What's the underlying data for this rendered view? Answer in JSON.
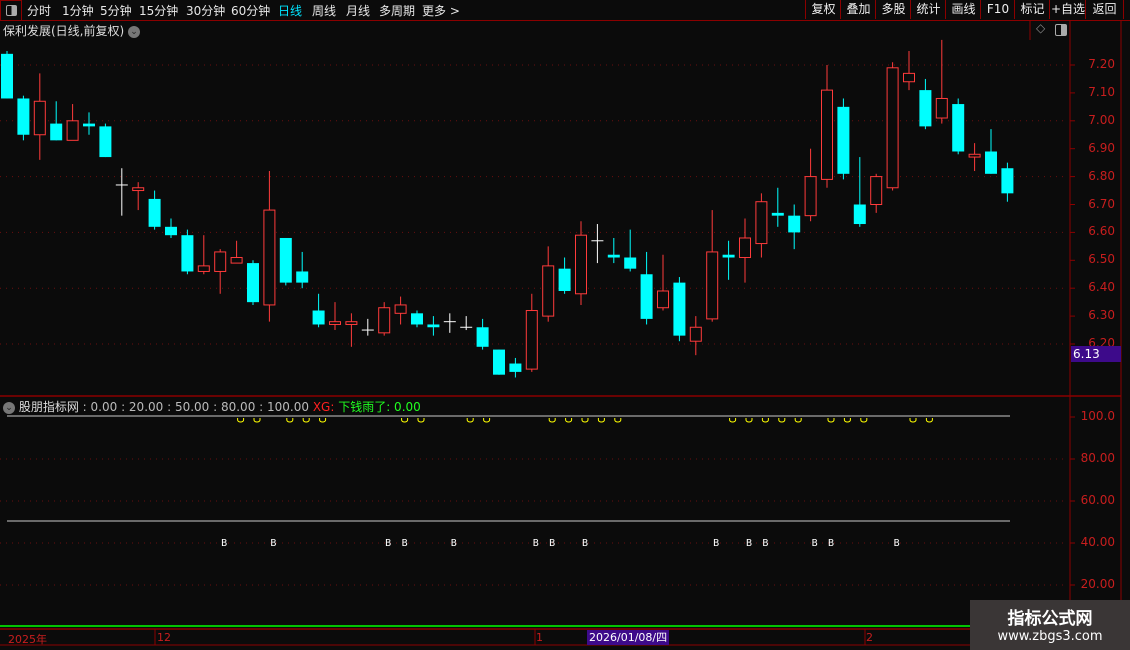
{
  "toolbar": {
    "periods": [
      "分时",
      "1分钟",
      "5分钟",
      "15分钟",
      "30分钟",
      "60分钟",
      "日线",
      "周线",
      "月线",
      "多周期",
      "更多 >"
    ],
    "active_period": "日线",
    "actions": [
      "复权",
      "叠加",
      "多股",
      "统计",
      "画线",
      "F10",
      "标记",
      "+自选",
      "返回"
    ]
  },
  "main": {
    "title": "保利发展(日线,前复权)",
    "price_ticks": [
      "7.20",
      "7.10",
      "7.00",
      "6.90",
      "6.80",
      "6.70",
      "6.60",
      "6.50",
      "6.40",
      "6.30",
      "6.20"
    ],
    "current_price_label": "6.13",
    "colors": {
      "up": "#ff3b3b",
      "down": "#00ffff",
      "flat": "#ffffff",
      "grid": "#6a0f0f",
      "axis": "#8b0000"
    }
  },
  "indicator": {
    "name": "股朋指标网",
    "params": ": 0.00 : 20.00 : 50.00 : 80.00 : 100.00",
    "xg_label": "XG:",
    "signal_text": "下钱雨了: 0.00",
    "ticks": [
      "100.0",
      "80.00",
      "60.00",
      "40.00",
      "20.00"
    ],
    "marker_label": "B",
    "colors": {
      "circle": "#ffff00",
      "line": "#c8c8c8",
      "zero": "#00ff00",
      "xg": "#ff2020",
      "signal": "#20ff20"
    }
  },
  "xaxis": {
    "labels": [
      {
        "text": "2025年"
      },
      {
        "text": "12"
      },
      {
        "text": "1"
      },
      {
        "text": "2"
      }
    ],
    "cursor_date": "2026/01/08/四"
  },
  "watermark": {
    "line1": "指标公式网",
    "line2": "www.zbgs3.com"
  },
  "chart_data": {
    "type": "candlestick",
    "ohlc_order": [
      "open",
      "high",
      "low",
      "close"
    ],
    "candles": [
      [
        7.24,
        7.25,
        7.08,
        7.08
      ],
      [
        7.08,
        7.09,
        6.93,
        6.95
      ],
      [
        6.95,
        7.17,
        6.86,
        7.07
      ],
      [
        6.99,
        7.07,
        6.93,
        6.93
      ],
      [
        6.93,
        7.06,
        6.93,
        7.0
      ],
      [
        6.99,
        7.03,
        6.95,
        6.98
      ],
      [
        6.98,
        6.99,
        6.87,
        6.87
      ],
      [
        6.77,
        6.83,
        6.66,
        6.77
      ],
      [
        6.75,
        6.78,
        6.68,
        6.76
      ],
      [
        6.72,
        6.75,
        6.61,
        6.62
      ],
      [
        6.62,
        6.65,
        6.58,
        6.59
      ],
      [
        6.59,
        6.61,
        6.45,
        6.46
      ],
      [
        6.46,
        6.59,
        6.45,
        6.48
      ],
      [
        6.46,
        6.54,
        6.38,
        6.53
      ],
      [
        6.49,
        6.57,
        6.49,
        6.51
      ],
      [
        6.49,
        6.5,
        6.34,
        6.35
      ],
      [
        6.34,
        6.82,
        6.28,
        6.68
      ],
      [
        6.58,
        6.58,
        6.41,
        6.42
      ],
      [
        6.46,
        6.53,
        6.4,
        6.42
      ],
      [
        6.32,
        6.38,
        6.26,
        6.27
      ],
      [
        6.27,
        6.35,
        6.25,
        6.28
      ],
      [
        6.27,
        6.31,
        6.19,
        6.28
      ],
      [
        6.25,
        6.29,
        6.23,
        6.25
      ],
      [
        6.24,
        6.35,
        6.23,
        6.33
      ],
      [
        6.31,
        6.37,
        6.27,
        6.34
      ],
      [
        6.31,
        6.32,
        6.26,
        6.27
      ],
      [
        6.27,
        6.3,
        6.23,
        6.26
      ],
      [
        6.28,
        6.31,
        6.24,
        6.28
      ],
      [
        6.26,
        6.3,
        6.25,
        6.26
      ],
      [
        6.26,
        6.29,
        6.18,
        6.19
      ],
      [
        6.18,
        6.18,
        6.09,
        6.09
      ],
      [
        6.13,
        6.15,
        6.08,
        6.1
      ],
      [
        6.11,
        6.38,
        6.1,
        6.32
      ],
      [
        6.3,
        6.55,
        6.28,
        6.48
      ],
      [
        6.47,
        6.51,
        6.38,
        6.39
      ],
      [
        6.38,
        6.64,
        6.34,
        6.59
      ],
      [
        6.57,
        6.63,
        6.49,
        6.57
      ],
      [
        6.52,
        6.58,
        6.49,
        6.51
      ],
      [
        6.51,
        6.61,
        6.46,
        6.47
      ],
      [
        6.45,
        6.53,
        6.27,
        6.29
      ],
      [
        6.33,
        6.52,
        6.32,
        6.39
      ],
      [
        6.42,
        6.44,
        6.21,
        6.23
      ],
      [
        6.21,
        6.3,
        6.16,
        6.26
      ],
      [
        6.29,
        6.68,
        6.28,
        6.53
      ],
      [
        6.52,
        6.57,
        6.43,
        6.51
      ],
      [
        6.51,
        6.65,
        6.42,
        6.58
      ],
      [
        6.56,
        6.74,
        6.51,
        6.71
      ],
      [
        6.67,
        6.76,
        6.62,
        6.66
      ],
      [
        6.66,
        6.7,
        6.54,
        6.6
      ],
      [
        6.66,
        6.9,
        6.64,
        6.8
      ],
      [
        6.79,
        7.2,
        6.76,
        7.11
      ],
      [
        7.05,
        7.08,
        6.79,
        6.81
      ],
      [
        6.7,
        6.87,
        6.62,
        6.63
      ],
      [
        6.7,
        6.81,
        6.67,
        6.8
      ],
      [
        6.76,
        7.21,
        6.75,
        7.19
      ],
      [
        7.14,
        7.25,
        7.11,
        7.17
      ],
      [
        7.11,
        7.15,
        6.97,
        6.98
      ],
      [
        7.01,
        7.29,
        6.99,
        7.08
      ],
      [
        7.06,
        7.08,
        6.88,
        6.89
      ],
      [
        6.87,
        6.92,
        6.82,
        6.88
      ],
      [
        6.89,
        6.97,
        6.81,
        6.81
      ],
      [
        6.83,
        6.85,
        6.71,
        6.74
      ]
    ],
    "ylim": [
      6.13,
      7.3
    ],
    "indicator_ylim": [
      0,
      100
    ],
    "indicator_lines": [
      100,
      50,
      0
    ],
    "circle_value": 100,
    "circle_candles": [
      15,
      16,
      18,
      19,
      20,
      25,
      26,
      29,
      30,
      34,
      35,
      36,
      37,
      38,
      45,
      46,
      47,
      48,
      49,
      51,
      52,
      53,
      56,
      57
    ],
    "b_value": 40,
    "b_candles": [
      14,
      17,
      24,
      25,
      28,
      33,
      34,
      36,
      44,
      46,
      47,
      50,
      51,
      55
    ]
  }
}
